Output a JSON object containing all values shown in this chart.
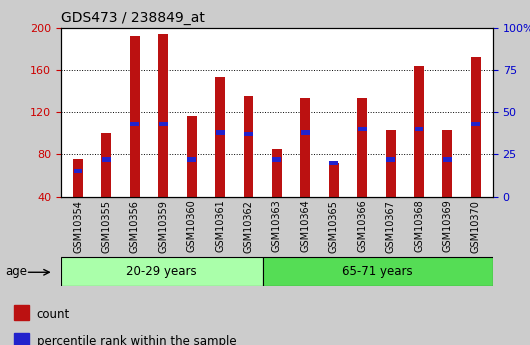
{
  "title": "GDS473 / 238849_at",
  "samples": [
    "GSM10354",
    "GSM10355",
    "GSM10356",
    "GSM10359",
    "GSM10360",
    "GSM10361",
    "GSM10362",
    "GSM10363",
    "GSM10364",
    "GSM10365",
    "GSM10366",
    "GSM10367",
    "GSM10368",
    "GSM10369",
    "GSM10370"
  ],
  "counts": [
    76,
    100,
    192,
    194,
    116,
    153,
    135,
    85,
    133,
    72,
    133,
    103,
    164,
    103,
    172
  ],
  "percentiles": [
    15,
    22,
    43,
    43,
    22,
    38,
    37,
    22,
    38,
    20,
    40,
    22,
    40,
    22,
    43
  ],
  "group1_label": "20-29 years",
  "group2_label": "65-71 years",
  "group1_count": 7,
  "group2_count": 8,
  "group1_color": "#aaffaa",
  "group2_color": "#55dd55",
  "bar_color": "#bb1111",
  "percentile_color": "#2222cc",
  "ymin": 40,
  "ymax": 200,
  "yticks_left": [
    40,
    80,
    120,
    160,
    200
  ],
  "yticks_right": [
    0,
    25,
    50,
    75,
    100
  ],
  "plot_bg_color": "#ffffff",
  "fig_bg_color": "#cccccc",
  "legend_count_label": "count",
  "legend_pct_label": "percentile rank within the sample",
  "age_label": "age",
  "bar_width": 0.35
}
